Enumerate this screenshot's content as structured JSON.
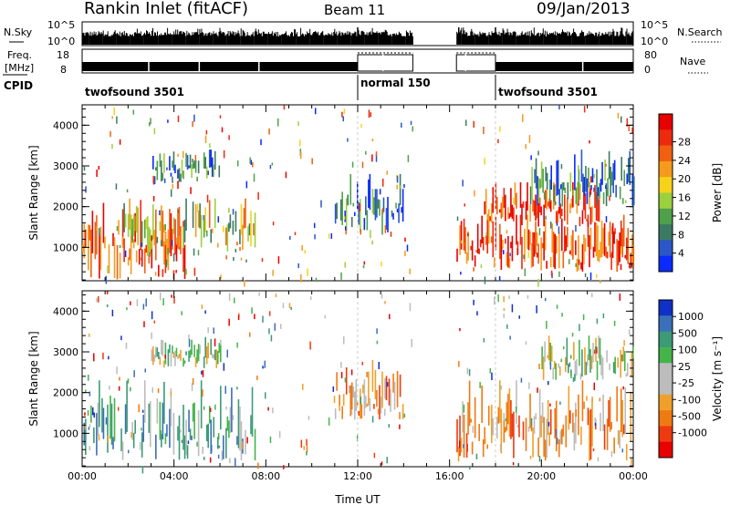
{
  "header": {
    "station": "Rankin Inlet (fitACF)",
    "beam": "Beam 11",
    "date": "09/Jan/2013"
  },
  "noise_panel": {
    "left_label": "N.Sky",
    "right_label": "N.Search",
    "ticks": [
      "10^5",
      "10^0"
    ]
  },
  "freq_panel": {
    "left_label_1": "Freq.",
    "left_label_2": "[MHz]",
    "right_label": "Nave",
    "left_ticks": [
      "18",
      "8"
    ],
    "right_ticks": [
      "80",
      "0"
    ]
  },
  "cpid": {
    "label": "CPID",
    "segments": [
      {
        "name": "twofsound 3501",
        "start": 0,
        "end": 12
      },
      {
        "name": "normal 150",
        "start": 12,
        "end": 18
      },
      {
        "name": "twofsound 3501",
        "start": 18,
        "end": 24
      }
    ]
  },
  "chart_data": [
    {
      "type": "heatmap",
      "panel": "power",
      "ylabel": "Slant Range [km]",
      "ylim": [
        180,
        4500
      ],
      "xlim": [
        0,
        24
      ],
      "yticks": [
        "1000",
        "2000",
        "3000",
        "4000"
      ],
      "colorbar": {
        "label": "Power [dB]",
        "ticks": [
          "4",
          "8",
          "12",
          "16",
          "20",
          "24",
          "28"
        ],
        "colors": [
          "#0a2bff",
          "#2b57c8",
          "#3b7a62",
          "#4fa04a",
          "#9bd03e",
          "#f7d21a",
          "#f59b1c",
          "#f06010",
          "#ee2a0e",
          "#e80000"
        ]
      },
      "regions": [
        {
          "t0": 0.0,
          "t1": 4.5,
          "r0": 200,
          "r1": 2200,
          "level": "high"
        },
        {
          "t0": 1.5,
          "t1": 7.5,
          "r0": 800,
          "r1": 2200,
          "level": "medium"
        },
        {
          "t0": 3.0,
          "t1": 6.0,
          "r0": 2600,
          "r1": 3400,
          "level": "low"
        },
        {
          "t0": 11.0,
          "t1": 14.0,
          "r0": 1300,
          "r1": 2800,
          "level": "low"
        },
        {
          "t0": 16.3,
          "t1": 24.0,
          "r0": 400,
          "r1": 1800,
          "level": "high"
        },
        {
          "t0": 17.5,
          "t1": 22.5,
          "r0": 1500,
          "r1": 2600,
          "level": "high"
        },
        {
          "t0": 19.5,
          "t1": 24.0,
          "r0": 2000,
          "r1": 3400,
          "level": "low"
        }
      ]
    },
    {
      "type": "heatmap",
      "panel": "velocity",
      "xlabel": "Time UT",
      "ylabel": "Slant Range [km]",
      "ylim": [
        180,
        4500
      ],
      "xlim": [
        0,
        24
      ],
      "xticks": [
        "00:00",
        "04:00",
        "08:00",
        "12:00",
        "16:00",
        "20:00",
        "00:00"
      ],
      "yticks": [
        "1000",
        "2000",
        "3000",
        "4000"
      ],
      "colorbar": {
        "label": "Velocity [m s⁻¹]",
        "ticks": [
          "1000",
          "500",
          "100",
          "25",
          "-25",
          "-100",
          "-500",
          "-1000"
        ],
        "colors": [
          "#1030c8",
          "#3b6fb8",
          "#3c9a76",
          "#44b44a",
          "#bcbcbc",
          "#bcbcbc",
          "#f0a02a",
          "#f07a12",
          "#ee3a10",
          "#e80000"
        ]
      },
      "regions": [
        {
          "t0": 0.0,
          "t1": 7.5,
          "r0": 300,
          "r1": 2300,
          "level": "positive"
        },
        {
          "t0": 3.0,
          "t1": 6.0,
          "r0": 2600,
          "r1": 3400,
          "level": "mixed"
        },
        {
          "t0": 11.0,
          "t1": 14.0,
          "r0": 1300,
          "r1": 2800,
          "level": "negative"
        },
        {
          "t0": 16.3,
          "t1": 24.0,
          "r0": 300,
          "r1": 2300,
          "level": "negative"
        },
        {
          "t0": 20.0,
          "t1": 24.0,
          "r0": 2300,
          "r1": 3400,
          "level": "mixed"
        }
      ]
    }
  ]
}
